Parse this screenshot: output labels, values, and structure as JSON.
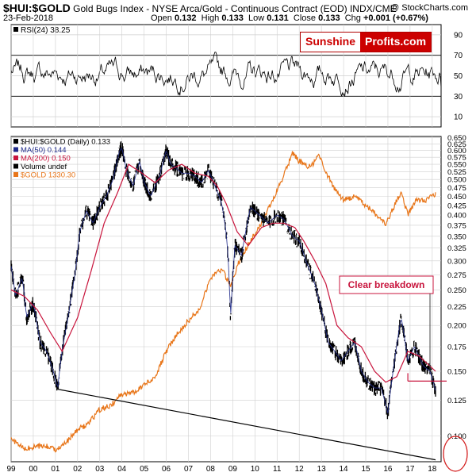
{
  "header": {
    "symbol": "$HUI:$GOLD",
    "description": "Gold Bugs Index - NYSE Arca/Gold - Continuous Contract (EOD)  INDX/CME",
    "source": "@ StockCharts.com",
    "date": "23-Feb-2018",
    "ohlc": {
      "open_label": "Open",
      "open": "0.132",
      "high_label": "High",
      "high": "0.133",
      "low_label": "Low",
      "low": "0.131",
      "close_label": "Close",
      "close": "0.133",
      "chg_label": "Chg",
      "chg": "+0.001 (+0.67%)"
    }
  },
  "logo": {
    "part1": "Sunshine",
    "part2": "Profits.com"
  },
  "annotation": {
    "text": "Clear breakdown"
  },
  "colors": {
    "price": "#000000",
    "ma50": "#1f2a8a",
    "ma200": "#c8143c",
    "gold": "#e8761a",
    "annotation": "#c8143c",
    "circle": "#d42020",
    "grid": "#cfcfcf",
    "axis": "#000000"
  },
  "chart_data": [
    {
      "type": "line",
      "panel": "RSI",
      "legend": [
        {
          "name": "RSI(24)",
          "value": "38.25"
        }
      ],
      "ylim": [
        0,
        100
      ],
      "y_ticks": [
        "90",
        "70",
        "50",
        "30",
        "10"
      ],
      "y_tick_values": [
        90,
        70,
        50,
        30,
        10
      ],
      "reference_lines": [
        70,
        30
      ],
      "series": [
        {
          "name": "RSI(24)",
          "last": 38.25
        }
      ]
    },
    {
      "type": "line",
      "panel": "Price",
      "log_scale": true,
      "ylim": [
        0.085,
        0.655
      ],
      "x_ticks": [
        "99",
        "00",
        "01",
        "02",
        "03",
        "04",
        "05",
        "06",
        "07",
        "08",
        "09",
        "10",
        "11",
        "12",
        "13",
        "14",
        "15",
        "16",
        "17",
        "18"
      ],
      "x_tick_values": [
        1999,
        2000,
        2001,
        2002,
        2003,
        2004,
        2005,
        2006,
        2007,
        2008,
        2009,
        2010,
        2011,
        2012,
        2013,
        2014,
        2015,
        2016,
        2017,
        2018
      ],
      "y_ticks": [
        "0.650",
        "0.625",
        "0.600",
        "0.575",
        "0.550",
        "0.525",
        "0.500",
        "0.475",
        "0.450",
        "0.425",
        "0.400",
        "0.375",
        "0.350",
        "0.325",
        "0.300",
        "0.275",
        "0.250",
        "0.225",
        "0.200",
        "0.175",
        "0.150",
        "0.125",
        "0.100"
      ],
      "y_tick_values": [
        0.65,
        0.625,
        0.6,
        0.575,
        0.55,
        0.525,
        0.5,
        0.475,
        0.45,
        0.425,
        0.4,
        0.375,
        0.35,
        0.325,
        0.3,
        0.275,
        0.25,
        0.225,
        0.2,
        0.175,
        0.15,
        0.125,
        0.1
      ],
      "legend": [
        {
          "name": "$HUI:$GOLD (Daily)",
          "value": "0.133",
          "color": "#000000"
        },
        {
          "name": "MA(50)",
          "value": "0.144",
          "color": "#1f2a8a"
        },
        {
          "name": "MA(200)",
          "value": "0.150",
          "color": "#c8143c"
        },
        {
          "name": "Volume",
          "value": "undef",
          "color": "#000000"
        },
        {
          "name": "$GOLD",
          "value": "1330.30",
          "color": "#e8761a"
        }
      ],
      "series": [
        {
          "name": "$HUI:$GOLD",
          "x": [
            1999.0,
            1999.2,
            1999.5,
            1999.7,
            2000.0,
            2000.3,
            2000.6,
            2000.9,
            2001.1,
            2001.3,
            2001.6,
            2001.9,
            2002.1,
            2002.4,
            2002.7,
            2003.0,
            2003.3,
            2003.6,
            2003.9,
            2004.0,
            2004.2,
            2004.5,
            2004.8,
            2005.0,
            2005.3,
            2005.7,
            2006.0,
            2006.2,
            2006.4,
            2006.7,
            2007.0,
            2007.3,
            2007.6,
            2007.9,
            2008.2,
            2008.5,
            2008.7,
            2008.8,
            2008.9,
            2009.1,
            2009.4,
            2009.8,
            2010.2,
            2010.6,
            2011.0,
            2011.3,
            2011.7,
            2012.0,
            2012.3,
            2012.7,
            2013.0,
            2013.3,
            2013.6,
            2013.9,
            2014.2,
            2014.5,
            2014.8,
            2015.1,
            2015.4,
            2015.7,
            2016.0,
            2016.3,
            2016.6,
            2016.9,
            2017.2,
            2017.6,
            2017.9,
            2018.15
          ],
          "y": [
            0.29,
            0.24,
            0.27,
            0.21,
            0.23,
            0.18,
            0.17,
            0.15,
            0.135,
            0.17,
            0.215,
            0.28,
            0.36,
            0.41,
            0.38,
            0.42,
            0.45,
            0.5,
            0.6,
            0.61,
            0.53,
            0.48,
            0.56,
            0.49,
            0.45,
            0.51,
            0.6,
            0.55,
            0.54,
            0.52,
            0.52,
            0.51,
            0.49,
            0.53,
            0.48,
            0.43,
            0.36,
            0.3,
            0.21,
            0.33,
            0.31,
            0.42,
            0.4,
            0.38,
            0.4,
            0.39,
            0.35,
            0.34,
            0.3,
            0.26,
            0.22,
            0.18,
            0.17,
            0.16,
            0.17,
            0.18,
            0.15,
            0.14,
            0.135,
            0.135,
            0.115,
            0.16,
            0.21,
            0.16,
            0.175,
            0.155,
            0.15,
            0.133
          ]
        },
        {
          "name": "MA(200)",
          "x": [
            1999.0,
            1999.6,
            2000.2,
            2000.8,
            2001.3,
            2002.0,
            2002.6,
            2003.2,
            2003.8,
            2004.3,
            2004.9,
            2005.5,
            2006.1,
            2006.7,
            2007.3,
            2007.9,
            2008.3,
            2008.7,
            2009.2,
            2009.7,
            2010.3,
            2010.8,
            2011.3,
            2011.8,
            2012.2,
            2012.7,
            2013.2,
            2013.7,
            2014.2,
            2014.8,
            2015.4,
            2015.9,
            2016.4,
            2016.9,
            2017.4,
            2017.9,
            2018.15
          ],
          "y": [
            0.25,
            0.24,
            0.22,
            0.19,
            0.17,
            0.21,
            0.28,
            0.38,
            0.46,
            0.55,
            0.52,
            0.49,
            0.53,
            0.55,
            0.52,
            0.51,
            0.48,
            0.43,
            0.36,
            0.33,
            0.37,
            0.38,
            0.38,
            0.37,
            0.34,
            0.3,
            0.26,
            0.2,
            0.185,
            0.175,
            0.15,
            0.14,
            0.145,
            0.17,
            0.165,
            0.155,
            0.15
          ]
        },
        {
          "name": "$GOLD",
          "x": [
            1999.0,
            1999.6,
            2000.0,
            2000.5,
            2001.0,
            2001.5,
            2002.0,
            2002.5,
            2003.0,
            2003.5,
            2004.0,
            2004.5,
            2005.0,
            2005.5,
            2006.0,
            2006.5,
            2007.0,
            2007.5,
            2008.0,
            2008.5,
            2008.9,
            2009.3,
            2009.8,
            2010.3,
            2010.8,
            2011.3,
            2011.7,
            2012.0,
            2012.5,
            2012.9,
            2013.3,
            2013.7,
            2014.0,
            2014.5,
            2015.0,
            2015.5,
            2015.9,
            2016.3,
            2016.6,
            2016.9,
            2017.3,
            2017.7,
            2018.15
          ],
          "y": [
            0.098,
            0.092,
            0.093,
            0.094,
            0.092,
            0.096,
            0.104,
            0.108,
            0.118,
            0.121,
            0.13,
            0.131,
            0.138,
            0.144,
            0.17,
            0.19,
            0.206,
            0.222,
            0.27,
            0.285,
            0.255,
            0.3,
            0.34,
            0.38,
            0.44,
            0.51,
            0.59,
            0.56,
            0.54,
            0.58,
            0.51,
            0.46,
            0.44,
            0.45,
            0.425,
            0.4,
            0.375,
            0.425,
            0.46,
            0.4,
            0.44,
            0.44,
            0.455
          ]
        }
      ],
      "trendline": {
        "x": [
          2001.1,
          2018.15
        ],
        "y": [
          0.134,
          0.086
        ]
      },
      "support_line": {
        "y": 0.141,
        "x": [
          2016.9,
          2018.15
        ]
      }
    }
  ]
}
